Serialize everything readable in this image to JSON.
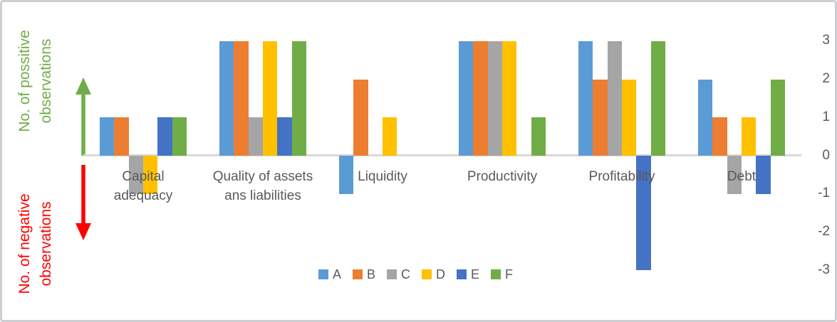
{
  "chart_data": {
    "type": "bar",
    "title": "",
    "categories": [
      "Capital adequacy",
      "Quality of assets ans liabilities",
      "Liquidity",
      "Productivity",
      "Profitability",
      "Debt"
    ],
    "category_display": [
      "Capital\nadequacy",
      "Quality of assets\nans liabilities",
      "Liquidity",
      "Productivity",
      "Profitability",
      "Debt"
    ],
    "series": [
      {
        "name": "A",
        "color": "#5B9BD5",
        "values": [
          1,
          3,
          -1,
          3,
          3,
          2
        ]
      },
      {
        "name": "B",
        "color": "#ED7D31",
        "values": [
          1,
          3,
          2,
          3,
          2,
          1
        ]
      },
      {
        "name": "C",
        "color": "#A5A5A5",
        "values": [
          -1,
          1,
          0,
          3,
          3,
          -1
        ]
      },
      {
        "name": "D",
        "color": "#FFC000",
        "values": [
          -1,
          3,
          1,
          3,
          2,
          1
        ]
      },
      {
        "name": "E",
        "color": "#4472C4",
        "values": [
          1,
          1,
          0,
          0,
          -3,
          -1
        ]
      },
      {
        "name": "F",
        "color": "#70AD47",
        "values": [
          1,
          3,
          0,
          1,
          3,
          2
        ]
      }
    ],
    "ylim": [
      -3,
      3
    ],
    "yticks": [
      3,
      2,
      1,
      0,
      -1,
      -2,
      -3
    ],
    "ylabel_positive": "No. of possitive observations",
    "ylabel_negative": "No. of negative observations",
    "legend_position": "bottom-center",
    "grid": false
  },
  "axis_labels": {
    "positive": {
      "line1": "No. of possitive",
      "line2": "observations",
      "color": "#70AD47"
    },
    "negative": {
      "line1": "No. of negative",
      "line2": "observations",
      "color": "#FF0000"
    }
  },
  "styles": {
    "axis_text_color": "#595959",
    "axis_line_color": "#D9D9D9"
  }
}
